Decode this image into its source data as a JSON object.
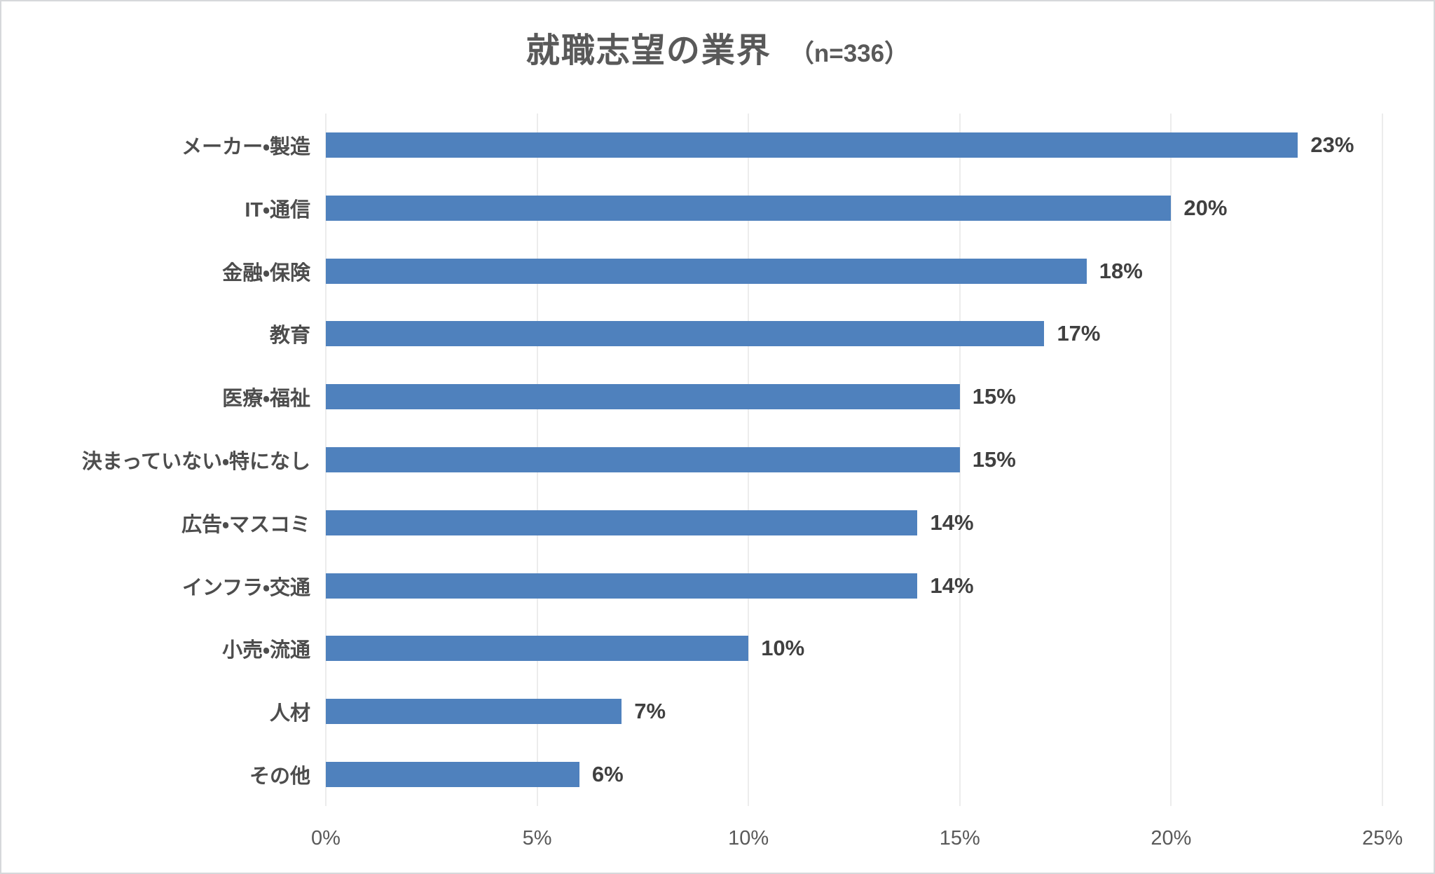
{
  "title": {
    "main": "就職志望の業界",
    "sample": "（n=336）"
  },
  "chart_data": {
    "type": "bar",
    "orientation": "horizontal",
    "title": "就職志望の業界 （n=336）",
    "sample_size": "n=336",
    "categories": [
      "メーカー・製造",
      "IT・通信",
      "金融・保険",
      "教育",
      "医療・福祉",
      "決まっていない・特になし",
      "広告・マスコミ",
      "インフラ・交通",
      "小売・流通",
      "人材",
      "その他"
    ],
    "values": [
      23,
      20,
      18,
      17,
      15,
      15,
      14,
      14,
      10,
      7,
      6
    ],
    "value_labels": [
      "23%",
      "20%",
      "18%",
      "17%",
      "15%",
      "15%",
      "14%",
      "14%",
      "10%",
      "7%",
      "6%"
    ],
    "xlabel": "",
    "ylabel": "",
    "xlim": [
      0,
      25
    ],
    "x_ticks": [
      "0%",
      "5%",
      "10%",
      "15%",
      "20%",
      "25%"
    ],
    "grid": "vertical",
    "legend": "none",
    "bar_color": "#4F81BD",
    "gridline_color": "#D9D9D9",
    "text_color": "#595959"
  }
}
